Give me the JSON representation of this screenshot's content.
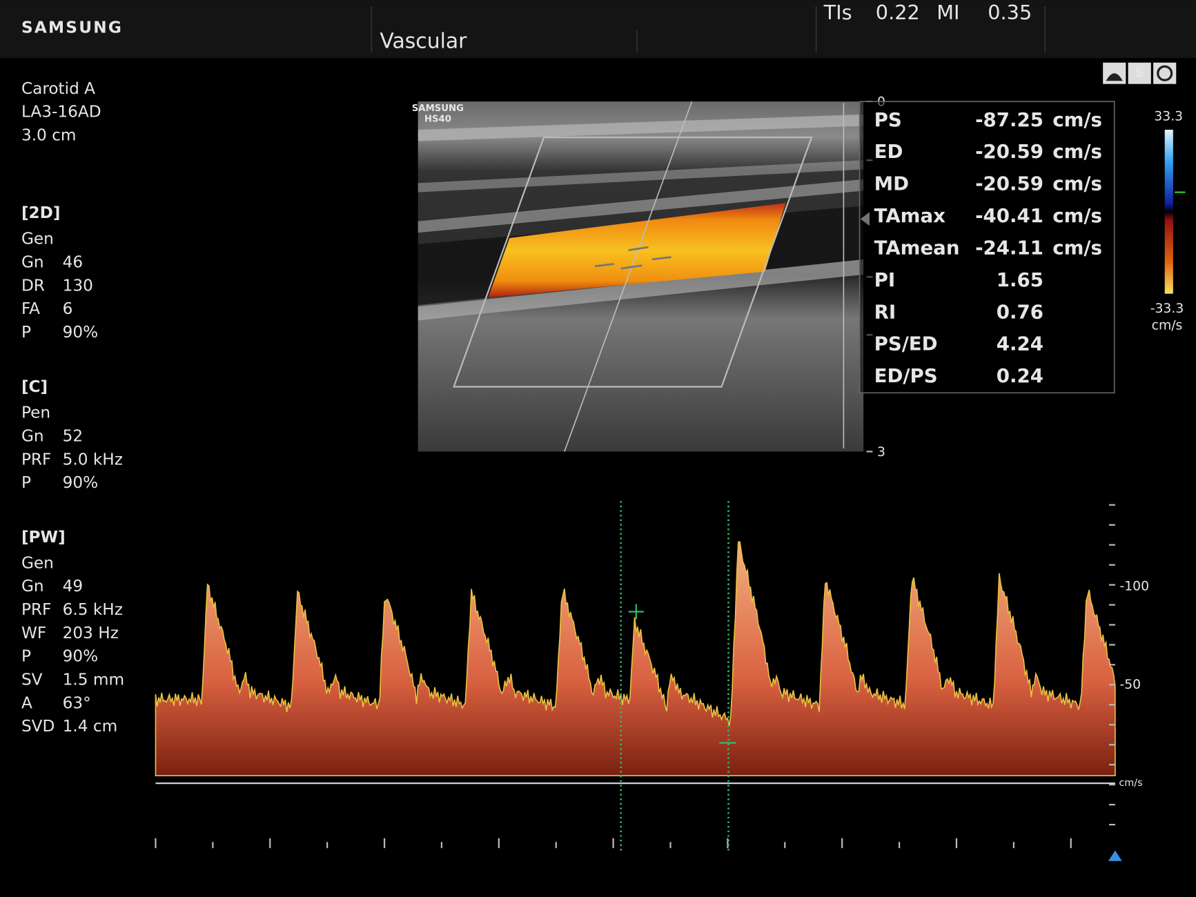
{
  "header": {
    "brand": "SAMSUNG",
    "preset": "Vascular",
    "tis_label": "TIs",
    "tis": "0.22",
    "mi_label": "MI",
    "mi": "0.35"
  },
  "probe": {
    "lines": [
      "Carotid  A",
      "LA3-16AD",
      "3.0 cm"
    ]
  },
  "sections": [
    {
      "title": "[2D]",
      "rows": [
        {
          "label": "Gen"
        },
        {
          "label": "Gn",
          "value": "46"
        },
        {
          "label": "DR",
          "value": "130"
        },
        {
          "label": "FA",
          "value": "6"
        },
        {
          "label": "P",
          "value": "90%"
        }
      ]
    },
    {
      "title": "[C]",
      "rows": [
        {
          "label": "Pen"
        },
        {
          "label": "Gn",
          "value": "52"
        },
        {
          "label": "PRF",
          "value": "5.0 kHz"
        },
        {
          "label": "P",
          "value": "90%"
        }
      ]
    },
    {
      "title": "[PW]",
      "rows": [
        {
          "label": "Gen"
        },
        {
          "label": "Gn",
          "value": "49"
        },
        {
          "label": "PRF",
          "value": "6.5 kHz"
        },
        {
          "label": "WF",
          "value": "203 Hz"
        },
        {
          "label": "P",
          "value": "90%"
        },
        {
          "label": "SV",
          "value": "1.5 mm"
        },
        {
          "label": "A",
          "value": "63°",
          "color": "#3a9fe0"
        },
        {
          "label": "SVD",
          "value": "1.4 cm"
        }
      ]
    }
  ],
  "image": {
    "watermark": [
      "SAMSUNG",
      "HS40"
    ],
    "depth_labels": [
      "0",
      "3"
    ]
  },
  "measurements": [
    {
      "label": "PS",
      "value": "-87.25",
      "unit": "cm/s"
    },
    {
      "label": "ED",
      "value": "-20.59",
      "unit": "cm/s"
    },
    {
      "label": "MD",
      "value": "-20.59",
      "unit": "cm/s"
    },
    {
      "label": "TAmax",
      "value": "-40.41",
      "unit": "cm/s"
    },
    {
      "label": "TAmean",
      "value": "-24.11",
      "unit": "cm/s"
    },
    {
      "label": "PI",
      "value": "1.65"
    },
    {
      "label": "RI",
      "value": "0.76"
    },
    {
      "label": "PS/ED",
      "value": "4.24"
    },
    {
      "label": "ED/PS",
      "value": "0.24"
    }
  ],
  "color_scale": {
    "top": "33.3",
    "bottom": "-33.3",
    "unit": "cm/s"
  },
  "spectrum": {
    "scale_labels": [
      "-100",
      "-50"
    ],
    "unit": "cm/s"
  }
}
